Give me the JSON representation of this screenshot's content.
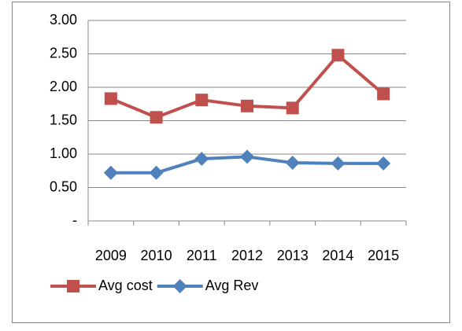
{
  "chart_data": {
    "type": "line",
    "categories": [
      "2009",
      "2010",
      "2011",
      "2012",
      "2013",
      "2014",
      "2015"
    ],
    "series": [
      {
        "name": "Avg cost",
        "color": "#c0504d",
        "marker": "square",
        "values": [
          1.83,
          1.55,
          1.81,
          1.72,
          1.69,
          2.48,
          1.9
        ]
      },
      {
        "name": "Avg Rev",
        "color": "#4f81bd",
        "marker": "diamond",
        "values": [
          0.72,
          0.72,
          0.93,
          0.96,
          0.87,
          0.86,
          0.86
        ]
      }
    ],
    "ylim": [
      0,
      3
    ],
    "yticks": [
      {
        "value": 0,
        "label": "-"
      },
      {
        "value": 0.5,
        "label": "0.50"
      },
      {
        "value": 1,
        "label": "1.00"
      },
      {
        "value": 1.5,
        "label": "1.50"
      },
      {
        "value": 2,
        "label": "2.00"
      },
      {
        "value": 2.5,
        "label": "2.50"
      },
      {
        "value": 3,
        "label": "3.00"
      }
    ],
    "grid": true,
    "legend": "bottom"
  }
}
